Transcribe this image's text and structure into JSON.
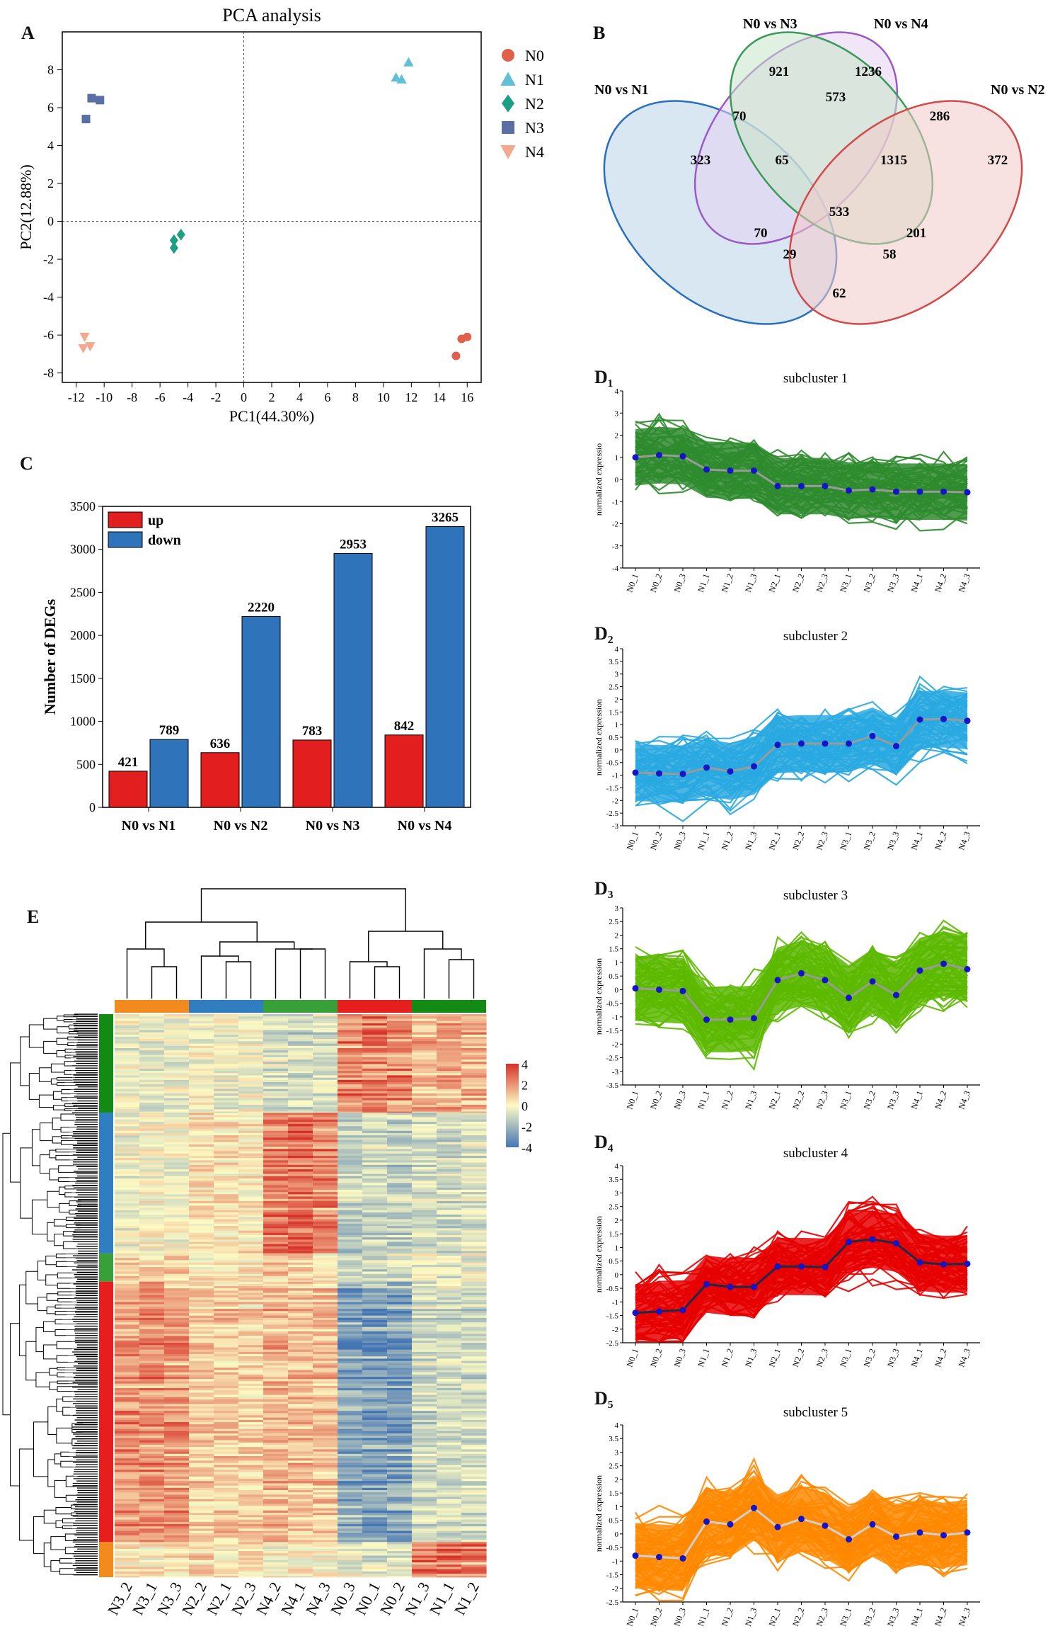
{
  "panel_labels": {
    "a": "A",
    "b": "B",
    "c": "C",
    "e": "E",
    "d1": "D₁",
    "d2": "D₂",
    "d3": "D₃",
    "d4": "D₄",
    "d5": "D₅"
  },
  "chart_data": [
    {
      "id": "A",
      "type": "scatter",
      "title": "PCA analysis",
      "xlabel": "PC1(44.30%)",
      "ylabel": "PC2(12.88%)",
      "xlim": [
        -13,
        17
      ],
      "ylim": [
        -8.5,
        10
      ],
      "xticks": [
        -12,
        -10,
        -8,
        -6,
        -4,
        -2,
        0,
        2,
        4,
        6,
        8,
        10,
        12,
        14,
        16
      ],
      "yticks": [
        -8,
        -6,
        -4,
        -2,
        0,
        2,
        4,
        6,
        8
      ],
      "series": [
        {
          "name": "N0",
          "marker": "circle",
          "color": "#e0604c",
          "points": [
            [
              15.2,
              -7.1
            ],
            [
              15.6,
              -6.2
            ],
            [
              16.0,
              -6.1
            ]
          ]
        },
        {
          "name": "N1",
          "marker": "triangle-up",
          "color": "#62c0d6",
          "points": [
            [
              10.9,
              7.6
            ],
            [
              11.3,
              7.5
            ],
            [
              11.8,
              8.4
            ]
          ]
        },
        {
          "name": "N2",
          "marker": "diamond",
          "color": "#1f9e86",
          "points": [
            [
              -5.0,
              -1.0
            ],
            [
              -4.5,
              -0.7
            ],
            [
              -5.0,
              -1.4
            ]
          ]
        },
        {
          "name": "N3",
          "marker": "square",
          "color": "#5a6fa3",
          "points": [
            [
              -11.3,
              5.4
            ],
            [
              -10.9,
              6.5
            ],
            [
              -10.3,
              6.4
            ]
          ]
        },
        {
          "name": "N4",
          "marker": "triangle-down",
          "color": "#f2a98f",
          "points": [
            [
              -11.4,
              -6.1
            ],
            [
              -11.5,
              -6.7
            ],
            [
              -11.0,
              -6.6
            ]
          ]
        }
      ]
    },
    {
      "id": "B",
      "type": "venn",
      "sets": [
        {
          "name": "N0 vs N1",
          "color": "#2a6fbf",
          "fill": "#bad3ea"
        },
        {
          "name": "N0 vs N3",
          "color": "#9b59c8",
          "fill": "#e3d2f0"
        },
        {
          "name": "N0 vs N4",
          "color": "#3a9a5a",
          "fill": "#c8e6c8"
        },
        {
          "name": "N0 vs N2",
          "color": "#d24a4a",
          "fill": "#f3c9c9"
        }
      ],
      "regions": [
        "921",
        "1236",
        "573",
        "286",
        "70",
        "323",
        "65",
        "1315",
        "372",
        "533",
        "70",
        "201",
        "29",
        "58",
        "62"
      ]
    },
    {
      "id": "C",
      "type": "bar",
      "ylabel": "Number of DEGs",
      "categories": [
        "N0 vs N1",
        "N0 vs N2",
        "N0 vs N3",
        "N0 vs N4"
      ],
      "ylim": [
        0,
        3500
      ],
      "yticks": [
        0,
        500,
        1000,
        1500,
        2000,
        2500,
        3000,
        3500
      ],
      "series": [
        {
          "name": "up",
          "color": "#e21e1e",
          "values": [
            421,
            636,
            783,
            842
          ]
        },
        {
          "name": "down",
          "color": "#2f74bb",
          "values": [
            789,
            2220,
            2953,
            3265
          ]
        }
      ]
    },
    {
      "id": "E",
      "type": "heatmap",
      "columns": [
        "N3_2",
        "N3_1",
        "N3_3",
        "N2_2",
        "N2_1",
        "N2_3",
        "N4_2",
        "N4_1",
        "N4_3",
        "N0_3",
        "N0_1",
        "N0_2",
        "N1_3",
        "N1_1",
        "N1_2"
      ],
      "column_groups": [
        {
          "name": "N3",
          "color": "#f28a1e"
        },
        {
          "name": "N2",
          "color": "#2f7fc0"
        },
        {
          "name": "N4",
          "color": "#38a038"
        },
        {
          "name": "N0",
          "color": "#e61e1e"
        },
        {
          "name": "N1",
          "color": "#138a13"
        }
      ],
      "row_groups": [
        {
          "color": "#138a13",
          "weight": 0.14,
          "profile": [
            -0.2,
            -0.3,
            -0.2,
            -0.1,
            -0.2,
            -0.1,
            -0.5,
            -0.6,
            -0.5,
            1.4,
            1.6,
            1.5,
            0.9,
            1.0,
            0.9
          ]
        },
        {
          "color": "#2f7fc0",
          "weight": 0.2,
          "profile": [
            -0.2,
            0.0,
            -0.1,
            0.3,
            0.3,
            0.2,
            1.6,
            1.8,
            1.5,
            -0.8,
            -0.7,
            -0.8,
            -0.5,
            -0.6,
            -0.4
          ]
        },
        {
          "color": "#38a038",
          "weight": 0.04,
          "profile": [
            0.5,
            0.4,
            0.5,
            0.2,
            0.2,
            0.3,
            0.6,
            0.5,
            0.4,
            -0.6,
            -0.6,
            -0.5,
            -0.2,
            -0.3,
            -0.2
          ]
        },
        {
          "color": "#e61e1e",
          "weight": 0.37,
          "profile": [
            1.2,
            1.3,
            1.2,
            0.5,
            0.6,
            0.5,
            0.8,
            0.7,
            0.7,
            -1.6,
            -1.8,
            -1.7,
            -0.6,
            -0.5,
            -0.6
          ]
        },
        {
          "color": "#f28a1e",
          "weight": 0.05,
          "profile": [
            0.2,
            0.1,
            0.2,
            0.4,
            0.3,
            0.3,
            0.0,
            0.1,
            0.0,
            -0.3,
            -0.4,
            -0.3,
            1.6,
            1.7,
            1.5
          ]
        }
      ],
      "colorbar": {
        "ticks": [
          "4",
          "2",
          "0",
          "-2",
          "-4"
        ],
        "low": "#4575b4",
        "mid": "#fdfbc4",
        "high": "#d73027"
      }
    },
    {
      "id": "D",
      "type": "line",
      "ylabel": "normalized expression",
      "x": [
        "N0_1",
        "N0_2",
        "N0_3",
        "N1_1",
        "N1_2",
        "N1_3",
        "N2_1",
        "N2_2",
        "N2_3",
        "N3_1",
        "N3_2",
        "N3_3",
        "N4_1",
        "N4_2",
        "N4_3"
      ],
      "subclusters": [
        {
          "title": "subcluster 1",
          "ylabel": "normalized expressio",
          "color": "#2e8b2e",
          "meancolor": "#9a9a9a",
          "ylim": [
            -4,
            4
          ],
          "yticks": [
            "4",
            "3",
            "2",
            "1",
            "0",
            "-1",
            "-2",
            "-3",
            "-4"
          ],
          "spread": 1.7,
          "mean": [
            1.0,
            1.1,
            1.05,
            0.45,
            0.4,
            0.4,
            -0.3,
            -0.3,
            -0.3,
            -0.5,
            -0.45,
            -0.55,
            -0.55,
            -0.55,
            -0.58
          ]
        },
        {
          "title": "subcluster 2",
          "ylabel": "normalized expression",
          "color": "#29a9e0",
          "meancolor": "#9a9a9a",
          "ylim": [
            -3,
            4
          ],
          "yticks": [
            "4",
            "3.5",
            "3",
            "2.5",
            "2",
            "1.5",
            "1",
            "0.5",
            "0",
            "-0.5",
            "-1",
            "-1.5",
            "-2",
            "-2.5",
            "-3"
          ],
          "spread": 1.5,
          "mean": [
            -0.9,
            -0.93,
            -0.95,
            -0.7,
            -0.85,
            -0.65,
            0.2,
            0.25,
            0.25,
            0.25,
            0.55,
            0.15,
            1.2,
            1.22,
            1.15
          ]
        },
        {
          "title": "subcluster 3",
          "ylabel": "normalized expression",
          "color": "#5cb900",
          "meancolor": "#9a9a9a",
          "ylim": [
            -3.5,
            3
          ],
          "yticks": [
            "3",
            "2.5",
            "2",
            "1.5",
            "1",
            "0.5",
            "0",
            "-0.5",
            "-1",
            "-1.5",
            "-2",
            "-2.5",
            "-3",
            "-3.5"
          ],
          "spread": 1.6,
          "mean": [
            0.05,
            0.0,
            -0.05,
            -1.1,
            -1.1,
            -1.05,
            0.35,
            0.6,
            0.35,
            -0.3,
            0.3,
            -0.2,
            0.7,
            0.95,
            0.75
          ]
        },
        {
          "title": "subcluster 4",
          "ylabel": "normalized expression",
          "color": "#e60000",
          "meancolor": "#1b2a4a",
          "ylim": [
            -2.5,
            4
          ],
          "yticks": [
            "4",
            "3.5",
            "3",
            "2.5",
            "2",
            "1.5",
            "1",
            "0.5",
            "0",
            "-0.5",
            "-1",
            "-1.5",
            "-2",
            "-2.5"
          ],
          "spread": 1.4,
          "mean": [
            -1.4,
            -1.35,
            -1.3,
            -0.35,
            -0.45,
            -0.45,
            0.3,
            0.3,
            0.28,
            1.2,
            1.3,
            1.15,
            0.45,
            0.38,
            0.4
          ]
        },
        {
          "title": "subcluster 5",
          "ylabel": "normalized expression",
          "color": "#ff8800",
          "meancolor": "#cfcfcf",
          "ylim": [
            -2.5,
            4
          ],
          "yticks": [
            "4",
            "3.5",
            "3",
            "2.5",
            "2",
            "1.5",
            "1",
            "0.5",
            "0",
            "-0.5",
            "-1",
            "-1.5",
            "-2",
            "-2.5"
          ],
          "spread": 1.6,
          "mean": [
            -0.8,
            -0.85,
            -0.9,
            0.45,
            0.35,
            0.95,
            0.25,
            0.55,
            0.3,
            -0.2,
            0.35,
            -0.1,
            0.05,
            -0.05,
            0.05
          ]
        }
      ]
    }
  ]
}
